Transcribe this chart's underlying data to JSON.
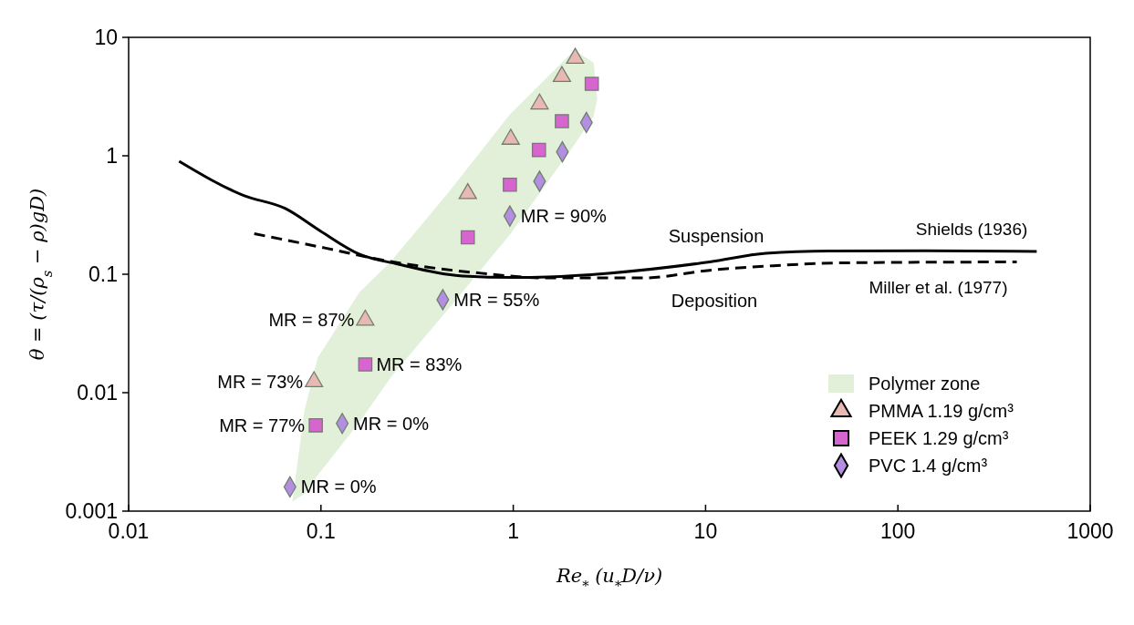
{
  "chart_data": {
    "type": "scatter",
    "log": "xy",
    "xlim": [
      0.01,
      1000
    ],
    "ylim": [
      0.001,
      10
    ],
    "xticks": [
      0.01,
      0.1,
      1,
      10,
      100,
      1000
    ],
    "yticks": [
      0.001,
      0.01,
      0.1,
      1,
      10
    ],
    "xlabel": "Re$_{*}$ (u$_{*}$D/ν)",
    "ylabel": "θ = (τ/(ρ$_{s}$ − ρ)gD)",
    "legend": "bottom right",
    "series": [
      {
        "name": "Polymer zone",
        "type": "area",
        "color": "#e2efd9",
        "x": [
          0.071,
          0.082,
          0.096,
          0.158,
          0.231,
          0.46,
          0.957,
          2.08,
          2.62,
          2.73,
          2.62,
          2.08,
          0.957,
          0.46,
          0.231,
          0.158,
          0.096,
          0.082
        ],
        "values": [
          0.0012,
          0.007,
          0.0196,
          0.07,
          0.128,
          0.49,
          2.22,
          7.8,
          6.1,
          3.0,
          2.18,
          1.24,
          0.214,
          0.051,
          0.0135,
          0.0056,
          0.002,
          0.0014
        ]
      },
      {
        "name": "Shields (1936)",
        "type": "line",
        "color": "#000000",
        "line_style": "solid",
        "x": [
          0.0183,
          0.04,
          0.065,
          0.1,
          0.158,
          0.25,
          0.53,
          1,
          1.51,
          3.12,
          10.5,
          20.6,
          44.5,
          135,
          527
        ],
        "values": [
          0.9,
          0.46,
          0.36,
          0.23,
          0.148,
          0.122,
          0.097,
          0.094,
          0.095,
          0.102,
          0.127,
          0.15,
          0.157,
          0.158,
          0.156
        ]
      },
      {
        "name": "Miller et al. (1977)",
        "type": "line",
        "color": "#000000",
        "line_style": "dashed",
        "x": [
          0.045,
          0.106,
          0.23,
          0.68,
          1.5,
          4.67,
          10.5,
          22.5,
          55,
          415
        ],
        "values": [
          0.22,
          0.166,
          0.128,
          0.102,
          0.093,
          0.093,
          0.108,
          0.118,
          0.125,
          0.127
        ]
      },
      {
        "name": "PMMA 1.19 g/cm³",
        "marker": "triangle",
        "color": "#e8b8b2",
        "x": [
          2.1,
          1.79,
          1.37,
          0.97,
          0.58,
          0.17,
          0.092
        ],
        "values": [
          6.65,
          4.67,
          2.74,
          1.38,
          0.48,
          0.041,
          0.0124
        ]
      },
      {
        "name": "PEEK 1.29 g/cm³",
        "marker": "square",
        "color": "#d765d0",
        "x": [
          2.56,
          1.79,
          1.36,
          0.96,
          0.58,
          0.17,
          0.094
        ],
        "values": [
          4.05,
          1.96,
          1.12,
          0.57,
          0.205,
          0.0173,
          0.0053
        ]
      },
      {
        "name": "PVC 1.4 g/cm³",
        "marker": "diamond",
        "color": "#b48ee0",
        "x": [
          2.4,
          1.8,
          1.37,
          0.96,
          0.43,
          0.129,
          0.069
        ],
        "values": [
          1.91,
          1.08,
          0.61,
          0.31,
          0.061,
          0.0055,
          0.0016
        ]
      }
    ],
    "annotations": [
      {
        "text": "MR = 90%",
        "x": 0.96,
        "y": 0.31
      },
      {
        "text": "MR = 55%",
        "x": 0.43,
        "y": 0.061
      },
      {
        "text": "MR = 87%",
        "x": 0.17,
        "y": 0.041
      },
      {
        "text": "MR = 83%",
        "x": 0.17,
        "y": 0.0173
      },
      {
        "text": "MR = 73%",
        "x": 0.092,
        "y": 0.0124
      },
      {
        "text": "MR = 77%",
        "x": 0.094,
        "y": 0.0053
      },
      {
        "text": "MR = 0%",
        "x": 0.129,
        "y": 0.0055
      },
      {
        "text": "MR = 0%",
        "x": 0.069,
        "y": 0.0016
      },
      "Suspension",
      "Deposition"
    ]
  }
}
